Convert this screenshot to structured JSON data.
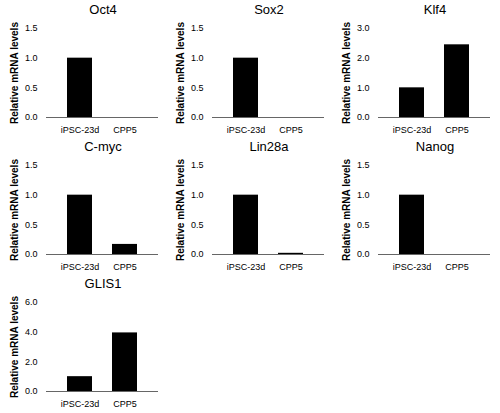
{
  "chart_data": [
    {
      "type": "bar",
      "title": "Oct4",
      "ylabel": "Relative mRNA levels",
      "categories": [
        "iPSC-23d",
        "CPP5"
      ],
      "values": [
        1,
        0
      ],
      "color": "#000000",
      "ylim": [
        0,
        1.5
      ],
      "yticks": [
        0,
        0.5,
        1,
        1.5
      ],
      "grid": false
    },
    {
      "type": "bar",
      "title": "Sox2",
      "ylabel": "Relative mRNA levels",
      "categories": [
        "iPSC-23d",
        "CPP5"
      ],
      "values": [
        1,
        0
      ],
      "color": "#000000",
      "ylim": [
        0,
        1.5
      ],
      "yticks": [
        0,
        0.5,
        1,
        1.5
      ],
      "grid": false
    },
    {
      "type": "bar",
      "title": "Klf4",
      "ylabel": "Relative mRNA levels",
      "categories": [
        "iPSC-23d",
        "CPP5"
      ],
      "values": [
        1,
        2.45
      ],
      "color": "#000000",
      "ylim": [
        0,
        3
      ],
      "yticks": [
        0,
        1,
        2,
        3
      ],
      "grid": false
    },
    {
      "type": "bar",
      "title": "C-myc",
      "ylabel": "Relative mRNA levels",
      "categories": [
        "iPSC-23d",
        "CPP5"
      ],
      "values": [
        1,
        0.17
      ],
      "color": "#000000",
      "ylim": [
        0,
        1.5
      ],
      "yticks": [
        0,
        0.5,
        1,
        1.5
      ],
      "grid": false
    },
    {
      "type": "bar",
      "title": "Lin28a",
      "ylabel": "Relative mRNA levels",
      "categories": [
        "iPSC-23d",
        "CPP5"
      ],
      "values": [
        1,
        0.02
      ],
      "color": "#000000",
      "ylim": [
        0,
        1.5
      ],
      "yticks": [
        0,
        0.5,
        1,
        1.5
      ],
      "grid": false
    },
    {
      "type": "bar",
      "title": "Nanog",
      "ylabel": "Relative mRNA levels",
      "categories": [
        "iPSC-23d",
        "CPP5"
      ],
      "values": [
        1,
        0
      ],
      "color": "#000000",
      "ylim": [
        0,
        1.5
      ],
      "yticks": [
        0,
        0.5,
        1,
        1.5
      ],
      "grid": false
    },
    {
      "type": "bar",
      "title": "GLIS1",
      "ylabel": "Relative mRNA levels",
      "categories": [
        "iPSC-23d",
        "CPP5"
      ],
      "values": [
        1,
        3.95
      ],
      "color": "#000000",
      "ylim": [
        0,
        6
      ],
      "yticks": [
        0,
        2,
        4,
        6
      ],
      "grid": false
    }
  ]
}
